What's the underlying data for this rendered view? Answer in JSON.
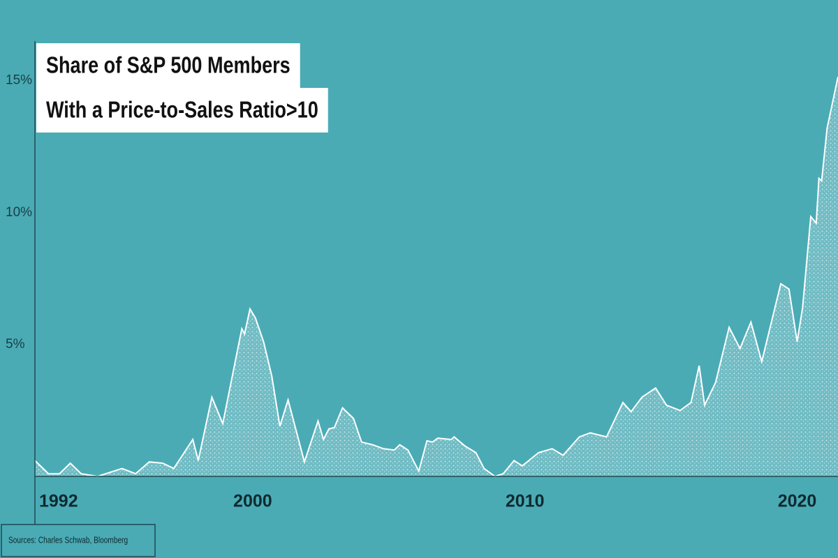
{
  "chart_data": {
    "type": "area",
    "title": [
      "Share of S&P 500 Members",
      "With a Price-to-Sales Ratio>10"
    ],
    "source": "Sources: Charles Schwab, Bloomberg",
    "color": "#a6d5da",
    "line_color": "#ffffff",
    "background": "#4aabb5",
    "grid": false,
    "xlim": [
      1992,
      2021.5
    ],
    "xticks": [
      1992,
      2000,
      2010,
      2020
    ],
    "ylim": [
      0,
      16.5
    ],
    "yticks": [
      {
        "value": 5,
        "label": "5%"
      },
      {
        "value": 10,
        "label": "10%"
      },
      {
        "value": 15,
        "label": "15%"
      }
    ],
    "x": [
      1992.0,
      1992.5,
      1992.9,
      1993.3,
      1993.7,
      1994.3,
      1995.2,
      1995.7,
      1996.2,
      1996.7,
      1997.1,
      1997.8,
      1998.0,
      1998.5,
      1998.9,
      1999.6,
      1999.7,
      1999.9,
      2000.1,
      2000.4,
      2000.7,
      2001.0,
      2001.3,
      2001.9,
      2002.4,
      2002.6,
      2002.8,
      2003.0,
      2003.3,
      2003.7,
      2004.0,
      2004.4,
      2004.8,
      2005.2,
      2005.4,
      2005.7,
      2006.1,
      2006.4,
      2006.6,
      2006.8,
      2007.3,
      2007.4,
      2007.8,
      2008.2,
      2008.5,
      2008.9,
      2009.2,
      2009.6,
      2009.9,
      2010.5,
      2011.0,
      2011.4,
      2012.0,
      2012.4,
      2013.0,
      2013.6,
      2013.9,
      2014.3,
      2014.8,
      2015.2,
      2015.7,
      2016.1,
      2016.4,
      2016.6,
      2017.0,
      2017.5,
      2017.9,
      2018.3,
      2018.7,
      2019.4,
      2019.7,
      2020.0,
      2020.2,
      2020.5,
      2020.7,
      2020.8,
      2020.9,
      2021.1,
      2021.5
    ],
    "values": [
      0.6,
      0.1,
      0.1,
      0.5,
      0.1,
      0.0,
      0.3,
      0.1,
      0.55,
      0.5,
      0.3,
      1.4,
      0.6,
      3.0,
      2.0,
      5.6,
      5.4,
      6.35,
      6.0,
      5.1,
      3.8,
      1.9,
      2.9,
      0.55,
      2.1,
      1.4,
      1.8,
      1.85,
      2.6,
      2.2,
      1.3,
      1.2,
      1.05,
      1.0,
      1.2,
      1.0,
      0.2,
      1.35,
      1.3,
      1.45,
      1.4,
      1.5,
      1.15,
      0.9,
      0.3,
      0.0,
      0.1,
      0.6,
      0.4,
      0.9,
      1.05,
      0.8,
      1.5,
      1.65,
      1.5,
      2.8,
      2.45,
      3.0,
      3.35,
      2.7,
      2.5,
      2.8,
      4.2,
      2.7,
      3.55,
      5.65,
      4.85,
      5.85,
      4.35,
      7.3,
      7.1,
      5.1,
      6.4,
      9.85,
      9.6,
      11.3,
      11.2,
      13.2,
      15.15
    ]
  }
}
